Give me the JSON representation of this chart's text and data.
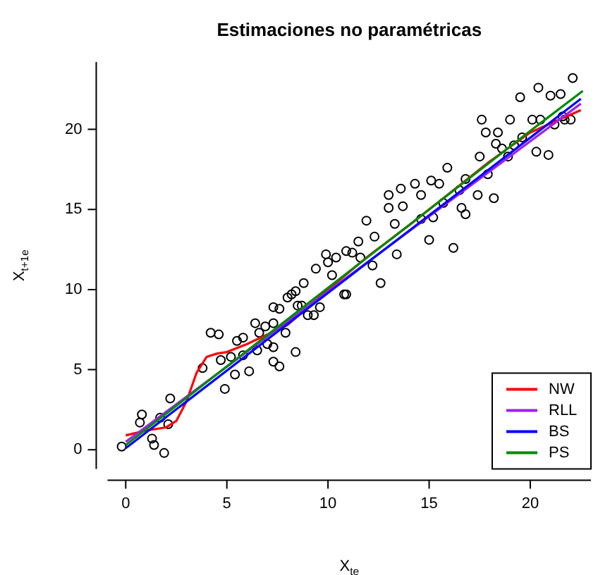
{
  "chart_data": {
    "type": "scatter",
    "title": "Estimaciones no paramétricas",
    "xlabel": "X$_{te}$",
    "ylabel": "X$_{t+1e}$",
    "xlim": [
      -0.9,
      23
    ],
    "ylim": [
      -1.2,
      24.2
    ],
    "xticks": [
      0,
      5,
      10,
      15,
      20
    ],
    "yticks": [
      0,
      5,
      10,
      15,
      20
    ],
    "legend": "bottom right",
    "series": [
      {
        "type": "scatter",
        "marker": "circle",
        "color": "#000000",
        "x": [
          -0.2,
          0.8,
          0.7,
          1.3,
          1.4,
          1.9,
          2.1,
          2.2,
          1.7,
          3.8,
          4.2,
          4.6,
          4.9,
          4.7,
          5.4,
          5.2,
          6.1,
          5.8,
          5.5,
          5.8,
          6.5,
          6.6,
          6.4,
          6.9,
          7.3,
          7.0,
          7.3,
          7.6,
          7.3,
          7.9,
          8.4,
          7.3,
          7.6,
          8.0,
          8.4,
          8.7,
          9.0,
          8.2,
          8.5,
          9.4,
          9.9,
          10.0,
          10.2,
          10.9,
          10.9,
          11.5,
          11.6,
          12.2,
          12.6,
          12.3,
          13.0,
          13.0,
          13.3,
          13.4,
          13.7,
          14.3,
          14.6,
          15.0,
          14.6,
          15.2,
          15.9,
          15.5,
          15.7,
          16.2,
          16.6,
          16.8,
          17.5,
          17.4,
          17.9,
          18.2,
          17.6,
          17.8,
          18.4,
          19.0,
          18.9,
          19.5,
          19.2,
          20.3,
          20.9,
          20.4,
          21.0,
          21.5,
          22.1,
          21.6,
          21.2,
          22.0,
          20.1,
          19.6,
          18.6,
          16.8,
          16.5,
          15.1,
          13.6,
          11.9,
          11.2,
          10.4,
          8.8,
          18.3,
          20.5,
          21.7,
          9.6,
          10.8,
          9.3
        ],
        "values": [
          0.2,
          2.2,
          1.7,
          0.7,
          0.3,
          -0.2,
          1.6,
          3.2,
          2.0,
          5.1,
          7.3,
          7.2,
          3.8,
          5.6,
          4.7,
          5.8,
          4.9,
          5.9,
          6.8,
          7.0,
          6.2,
          7.3,
          7.9,
          7.7,
          7.9,
          6.6,
          5.5,
          5.2,
          6.4,
          7.3,
          6.1,
          8.9,
          8.8,
          9.5,
          9.9,
          9.0,
          8.4,
          9.7,
          9.0,
          11.3,
          12.2,
          11.7,
          10.9,
          12.4,
          9.7,
          13.0,
          12.0,
          11.5,
          10.4,
          13.3,
          15.9,
          15.1,
          14.1,
          12.2,
          15.2,
          16.6,
          15.9,
          13.1,
          14.4,
          14.5,
          17.6,
          16.6,
          15.4,
          12.6,
          15.1,
          14.7,
          18.3,
          15.9,
          17.2,
          15.7,
          20.6,
          19.8,
          19.8,
          20.6,
          18.3,
          22.0,
          19.0,
          18.6,
          18.4,
          22.6,
          22.1,
          22.2,
          23.2,
          20.8,
          20.3,
          20.6,
          20.6,
          19.5,
          18.8,
          16.9,
          16.2,
          16.8,
          16.3,
          14.3,
          12.3,
          12.0,
          10.4,
          19.1,
          20.6,
          20.6,
          8.9,
          9.7,
          8.4
        ]
      },
      {
        "name": "NW",
        "type": "line",
        "color": "#ff0000",
        "x": [
          0,
          1,
          2,
          2.5,
          3,
          3.5,
          4,
          4.5,
          5,
          6,
          7,
          8,
          9,
          10,
          12,
          14,
          16,
          18,
          20,
          22.5
        ],
        "values": [
          0.9,
          1.2,
          1.4,
          1.8,
          3.0,
          4.8,
          5.8,
          6.0,
          6.1,
          6.6,
          7.2,
          7.8,
          8.9,
          10.0,
          12.1,
          14.0,
          16.0,
          18.0,
          19.8,
          21.2
        ]
      },
      {
        "name": "RLL",
        "type": "line",
        "color": "#a020f0",
        "x": [
          0,
          22.5
        ],
        "values": [
          0.5,
          21.6
        ]
      },
      {
        "name": "BS",
        "type": "line",
        "color": "#0000ff",
        "x": [
          0,
          22.5
        ],
        "values": [
          0.1,
          21.9
        ]
      },
      {
        "name": "PS",
        "type": "line",
        "color": "#008b00",
        "x": [
          0,
          5,
          10,
          15,
          20,
          22.6
        ],
        "values": [
          0.3,
          5.2,
          10.1,
          15.0,
          19.9,
          22.4
        ]
      }
    ]
  }
}
